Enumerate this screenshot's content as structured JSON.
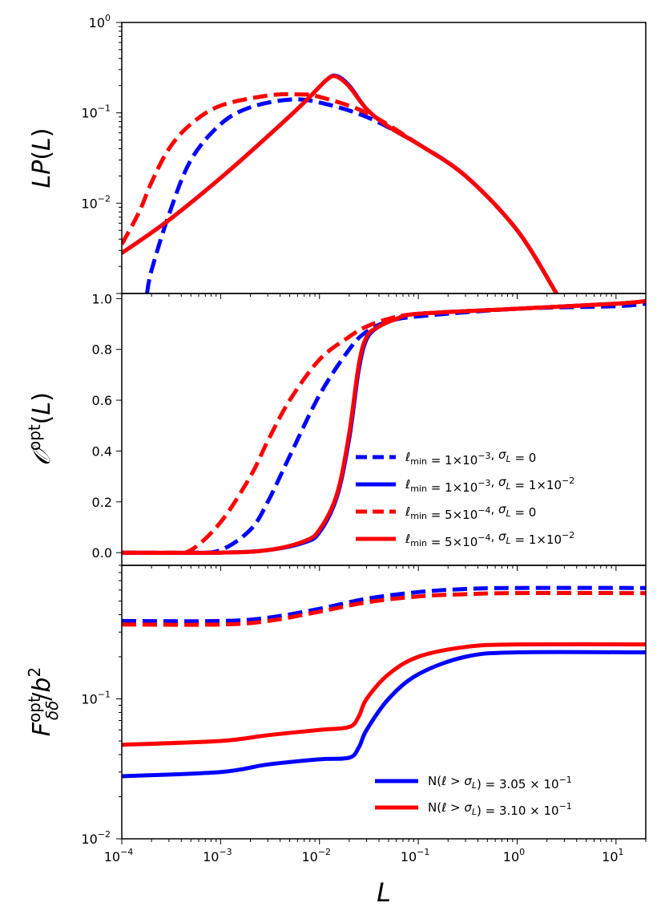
{
  "chart_data": [
    {
      "type": "line",
      "panel": "top",
      "ylabel": "LP(L)",
      "xscale": "log",
      "yscale": "log",
      "xlim": [
        0.0001,
        20
      ],
      "ylim": [
        0.001,
        1
      ],
      "yticklabels": [
        "10^-2",
        "10^-1",
        "10^0"
      ],
      "series": [
        {
          "name": "ℓmin = 1×10^-3, σL = 0",
          "color": "#0000ff",
          "style": "dashed",
          "x": [
            0.00018,
            0.0002,
            0.0003,
            0.0005,
            0.001,
            0.002,
            0.005,
            0.01,
            0.03,
            0.1,
            0.3,
            1,
            2.5
          ],
          "y": [
            0.001,
            0.0018,
            0.0075,
            0.03,
            0.075,
            0.115,
            0.14,
            0.13,
            0.09,
            0.045,
            0.02,
            0.005,
            0.001
          ]
        },
        {
          "name": "ℓmin = 1×10^-3, σL = 1×10^-2",
          "color": "#0000ff",
          "style": "solid",
          "x": [
            0.0001,
            0.0003,
            0.001,
            0.003,
            0.007,
            0.012,
            0.015,
            0.02,
            0.03,
            0.05,
            0.1,
            0.3,
            1,
            2.5
          ],
          "y": [
            0.0028,
            0.0065,
            0.019,
            0.055,
            0.13,
            0.235,
            0.255,
            0.2,
            0.11,
            0.07,
            0.045,
            0.02,
            0.005,
            0.001
          ]
        },
        {
          "name": "ℓmin = 5×10^-4, σL = 0",
          "color": "#ff0000",
          "style": "dashed",
          "x": [
            0.0001,
            0.00015,
            0.0002,
            0.0003,
            0.0005,
            0.001,
            0.003,
            0.006,
            0.01,
            0.03,
            0.1,
            0.3,
            1,
            2.5
          ],
          "y": [
            0.0035,
            0.008,
            0.017,
            0.04,
            0.075,
            0.12,
            0.155,
            0.16,
            0.15,
            0.1,
            0.045,
            0.02,
            0.005,
            0.001
          ]
        },
        {
          "name": "ℓmin = 5×10^-4, σL = 1×10^-2",
          "color": "#ff0000",
          "style": "solid",
          "x": [
            0.0001,
            0.0003,
            0.001,
            0.003,
            0.007,
            0.012,
            0.015,
            0.02,
            0.03,
            0.05,
            0.1,
            0.3,
            1,
            2.5
          ],
          "y": [
            0.0028,
            0.0065,
            0.019,
            0.055,
            0.13,
            0.235,
            0.25,
            0.195,
            0.11,
            0.07,
            0.045,
            0.02,
            0.005,
            0.001
          ]
        }
      ]
    },
    {
      "type": "line",
      "panel": "middle",
      "ylabel": "Oopt(L)",
      "xscale": "log",
      "yscale": "linear",
      "xlim": [
        0.0001,
        20
      ],
      "ylim": [
        -0.05,
        1.02
      ],
      "yticklabels": [
        "0.0",
        "0.2",
        "0.4",
        "0.6",
        "0.8",
        "1.0"
      ],
      "legend_position": "lower right",
      "series": [
        {
          "name": "ℓmin = 1×10^-3, σL = 0",
          "color": "#0000ff",
          "style": "dashed",
          "x": [
            0.0001,
            0.0005,
            0.001,
            0.002,
            0.003,
            0.005,
            0.01,
            0.02,
            0.03,
            0.05,
            0.1,
            1,
            10,
            20
          ],
          "y": [
            0.0,
            0.0,
            0.01,
            0.09,
            0.2,
            0.38,
            0.62,
            0.8,
            0.87,
            0.91,
            0.93,
            0.96,
            0.97,
            0.98
          ]
        },
        {
          "name": "ℓmin = 1×10^-3, σL = 1×10^-2",
          "color": "#0000ff",
          "style": "solid",
          "x": [
            0.0001,
            0.001,
            0.003,
            0.007,
            0.01,
            0.015,
            0.02,
            0.025,
            0.03,
            0.04,
            0.06,
            0.1,
            1,
            10,
            20
          ],
          "y": [
            0.0,
            0.0,
            0.01,
            0.04,
            0.08,
            0.22,
            0.45,
            0.72,
            0.84,
            0.89,
            0.92,
            0.94,
            0.96,
            0.98,
            0.99
          ]
        },
        {
          "name": "ℓmin = 5×10^-4, σL = 0",
          "color": "#ff0000",
          "style": "dashed",
          "x": [
            0.0001,
            0.0003,
            0.0005,
            0.001,
            0.002,
            0.003,
            0.005,
            0.01,
            0.02,
            0.03,
            0.05,
            0.1,
            1,
            10,
            20
          ],
          "y": [
            0.0,
            0.0,
            0.01,
            0.12,
            0.3,
            0.44,
            0.6,
            0.76,
            0.85,
            0.89,
            0.92,
            0.94,
            0.96,
            0.98,
            0.99
          ]
        },
        {
          "name": "ℓmin = 5×10^-4, σL = 1×10^-2",
          "color": "#ff0000",
          "style": "solid",
          "x": [
            0.0001,
            0.001,
            0.003,
            0.007,
            0.01,
            0.015,
            0.02,
            0.025,
            0.03,
            0.04,
            0.06,
            0.1,
            1,
            10,
            20
          ],
          "y": [
            0.0,
            0.0,
            0.01,
            0.045,
            0.09,
            0.23,
            0.47,
            0.74,
            0.85,
            0.89,
            0.92,
            0.94,
            0.96,
            0.98,
            0.99
          ]
        }
      ]
    },
    {
      "type": "line",
      "panel": "bottom",
      "ylabel": "Foptδδ/b2",
      "xlabel": "L",
      "xscale": "log",
      "yscale": "log",
      "xlim": [
        0.0001,
        20
      ],
      "ylim": [
        0.01,
        0.9
      ],
      "xticklabels": [
        "10^-4",
        "10^-3",
        "10^-2",
        "10^-1",
        "10^0",
        "10^1"
      ],
      "yticklabels": [
        "10^-2",
        "10^-1"
      ],
      "legend_position": "lower right",
      "series": [
        {
          "name": "N(ℓ > σL) = 3.05 × 10^-1",
          "color": "#0000ff",
          "style": "solid",
          "x": [
            0.0001,
            0.001,
            0.003,
            0.01,
            0.02,
            0.025,
            0.03,
            0.05,
            0.1,
            0.3,
            1,
            20
          ],
          "y": [
            0.028,
            0.03,
            0.034,
            0.037,
            0.038,
            0.045,
            0.06,
            0.1,
            0.15,
            0.2,
            0.215,
            0.215
          ]
        },
        {
          "name": "N(ℓ > σL) = 3.10 × 10^-1",
          "color": "#ff0000",
          "style": "solid",
          "x": [
            0.0001,
            0.001,
            0.003,
            0.01,
            0.02,
            0.025,
            0.03,
            0.05,
            0.1,
            0.3,
            1,
            20
          ],
          "y": [
            0.047,
            0.05,
            0.055,
            0.06,
            0.063,
            0.075,
            0.1,
            0.15,
            0.2,
            0.235,
            0.245,
            0.245
          ]
        },
        {
          "name": "blue dashed (no legend)",
          "color": "#0000ff",
          "style": "dashed",
          "x": [
            0.0001,
            0.001,
            0.003,
            0.01,
            0.03,
            0.1,
            0.3,
            1,
            20
          ],
          "y": [
            0.36,
            0.36,
            0.38,
            0.44,
            0.52,
            0.58,
            0.61,
            0.62,
            0.62
          ]
        },
        {
          "name": "red dashed (no legend)",
          "color": "#ff0000",
          "style": "dashed",
          "x": [
            0.0001,
            0.001,
            0.003,
            0.01,
            0.03,
            0.1,
            0.3,
            1,
            20
          ],
          "y": [
            0.34,
            0.34,
            0.36,
            0.42,
            0.49,
            0.54,
            0.56,
            0.57,
            0.57
          ]
        }
      ]
    }
  ]
}
